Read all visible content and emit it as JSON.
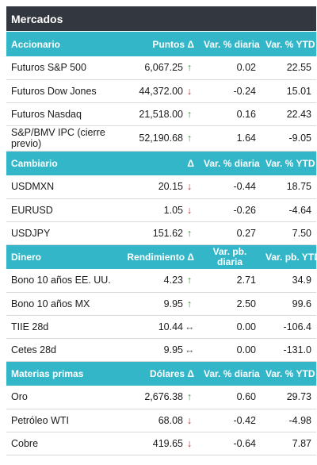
{
  "title": "Mercados",
  "sections": [
    {
      "header": [
        "Accionario",
        "Puntos Δ",
        "Var. % diaria",
        "Var. % YTD"
      ],
      "rows": [
        {
          "name": "Futuros S&P 500",
          "value": "6,067.25",
          "dir": "up",
          "daily": "0.02",
          "ytd": "22.55"
        },
        {
          "name": "Futuros Dow Jones",
          "value": "44,372.00",
          "dir": "down",
          "daily": "-0.24",
          "ytd": "15.01"
        },
        {
          "name": "Futuros Nasdaq",
          "value": "21,518.00",
          "dir": "up",
          "daily": "0.16",
          "ytd": "22.43"
        },
        {
          "name": "S&P/BMV IPC (cierre previo)",
          "value": "52,190.68",
          "dir": "up",
          "daily": "1.64",
          "ytd": "-9.05"
        }
      ]
    },
    {
      "header": [
        "Cambiario",
        "Δ",
        "Var. % diaria",
        "Var. % YTD"
      ],
      "rows": [
        {
          "name": "USDMXN",
          "value": "20.15",
          "dir": "down",
          "daily": "-0.44",
          "ytd": "18.75"
        },
        {
          "name": "EURUSD",
          "value": "1.05",
          "dir": "down",
          "daily": "-0.26",
          "ytd": "-4.64"
        },
        {
          "name": "USDJPY",
          "value": "151.62",
          "dir": "up",
          "daily": "0.27",
          "ytd": "7.50"
        }
      ]
    },
    {
      "header": [
        "Dinero",
        "Rendimiento Δ",
        "Var. pb. diaria",
        "Var. pb. YTD"
      ],
      "rows": [
        {
          "name": "Bono 10 años EE. UU.",
          "value": "4.23",
          "dir": "up",
          "daily": "2.71",
          "ytd": "34.9"
        },
        {
          "name": "Bono 10 años MX",
          "value": "9.95",
          "dir": "up",
          "daily": "2.50",
          "ytd": "99.6"
        },
        {
          "name": "TIIE 28d",
          "value": "10.44",
          "dir": "flat",
          "daily": "0.00",
          "ytd": "-106.4"
        },
        {
          "name": "Cetes 28d",
          "value": "9.95",
          "dir": "flat",
          "daily": "0.00",
          "ytd": "-131.0"
        }
      ]
    },
    {
      "header": [
        "Materias primas",
        "Dólares Δ",
        "Var. % diaria",
        "Var. % YTD"
      ],
      "rows": [
        {
          "name": "Oro",
          "value": "2,676.38",
          "dir": "up",
          "daily": "0.60",
          "ytd": "29.73"
        },
        {
          "name": "Petróleo WTI",
          "value": "68.08",
          "dir": "down",
          "daily": "-0.42",
          "ytd": "-4.98"
        },
        {
          "name": "Cobre",
          "value": "419.65",
          "dir": "down",
          "daily": "-0.64",
          "ytd": "7.87"
        }
      ]
    }
  ],
  "arrows": {
    "up": "↑",
    "down": "↓",
    "flat": "↔"
  },
  "colors": {
    "title_bg": "#333840",
    "header_bg": "#33b6c8",
    "up": "#2e9a2e",
    "down": "#c62828"
  }
}
